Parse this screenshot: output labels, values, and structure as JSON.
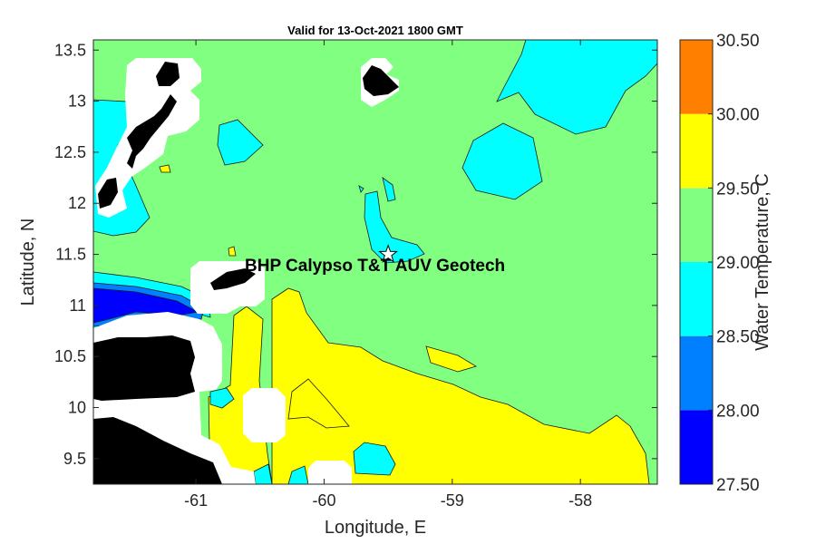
{
  "chart_data": {
    "type": "contour-map",
    "title": "Valid for 13-Oct-2021 1800 GMT",
    "xlabel": "Longitude, E",
    "ylabel": "Latitude, N",
    "xlim": [
      -61.8,
      -57.4
    ],
    "ylim": [
      9.25,
      13.6
    ],
    "xticks": [
      -61,
      -60,
      -59,
      -58
    ],
    "xtick_labels": [
      "-61",
      "-60",
      "-59",
      "-58"
    ],
    "yticks": [
      9.5,
      10,
      10.5,
      11,
      11.5,
      12,
      12.5,
      13,
      13.5
    ],
    "ytick_labels": [
      "9.5",
      "10",
      "10.5",
      "11",
      "11.5",
      "12",
      "12.5",
      "13",
      "13.5"
    ],
    "annotation": {
      "text": "BHP Calypso T&T AUV Geotech",
      "lon": -59.5,
      "lat": 11.5,
      "marker": "star"
    },
    "colorbar": {
      "label": "Water Temperature, C",
      "levels": [
        27.5,
        28.0,
        28.5,
        29.0,
        29.5,
        30.0,
        30.5
      ],
      "level_labels": [
        "27.50",
        "28.00",
        "28.50",
        "29.00",
        "29.50",
        "30.00",
        "30.50"
      ],
      "colors": [
        "#0000ff",
        "#0080ff",
        "#00ffff",
        "#80ff80",
        "#ffff00",
        "#ff8000"
      ]
    },
    "colors": {
      "land": "#000000",
      "no_data": "#ffffff",
      "contour_line": "#1a1a1a"
    }
  }
}
